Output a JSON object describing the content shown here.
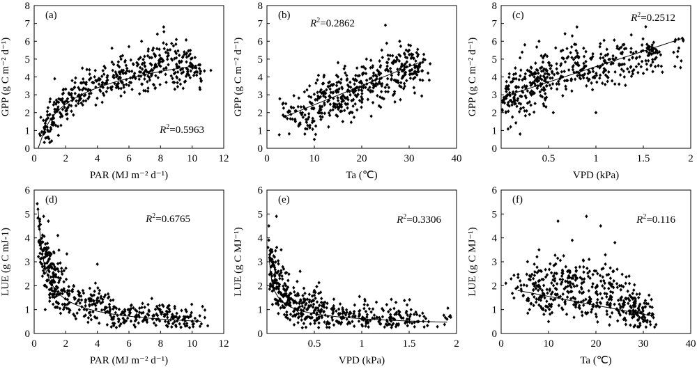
{
  "chart_data": [
    {
      "id": "a",
      "type": "scatter",
      "panel_label": "(a)",
      "xlabel": "PAR (MJ m⁻² d⁻¹)",
      "ylabel": "GPP (g C m⁻² d⁻¹)",
      "xlim": [
        0,
        12
      ],
      "ylim": [
        0,
        8
      ],
      "xticks": [
        "0",
        "2",
        "4",
        "6",
        "8",
        "10",
        "12"
      ],
      "yticks": [
        "0",
        "1",
        "2",
        "3",
        "4",
        "5",
        "6",
        "7",
        "8"
      ],
      "r2_label": "R",
      "r2_text": "=0.5963",
      "r2_position": "bottom-right",
      "fit": {
        "form": "logarithmic",
        "coef": [
          1.32,
          1.56
        ]
      },
      "n_points": 480,
      "points": [
        [
          0.6,
          0.8
        ],
        [
          0.7,
          1.4
        ],
        [
          0.8,
          0.6
        ],
        [
          1.0,
          1.9
        ],
        [
          1.2,
          1.3
        ],
        [
          1.3,
          3.9
        ],
        [
          1.5,
          2.2
        ],
        [
          1.8,
          2.6
        ],
        [
          2.0,
          2.1
        ],
        [
          2.2,
          3.1
        ],
        [
          2.5,
          2.8
        ],
        [
          2.8,
          3.4
        ],
        [
          3.0,
          3.0
        ],
        [
          3.3,
          3.7
        ],
        [
          3.5,
          4.4
        ],
        [
          4.0,
          3.8
        ],
        [
          4.2,
          3.2
        ],
        [
          4.5,
          4.5
        ],
        [
          5.0,
          4.0
        ],
        [
          5.2,
          3.4
        ],
        [
          5.5,
          5.0
        ],
        [
          5.8,
          4.2
        ],
        [
          6.0,
          5.7
        ],
        [
          6.2,
          3.3
        ],
        [
          6.5,
          4.8
        ],
        [
          6.8,
          6.0
        ],
        [
          7.0,
          4.1
        ],
        [
          7.2,
          3.2
        ],
        [
          7.5,
          5.5
        ],
        [
          7.8,
          6.4
        ],
        [
          8.0,
          4.6
        ],
        [
          8.2,
          6.8
        ],
        [
          8.5,
          5.2
        ],
        [
          8.8,
          3.7
        ],
        [
          9.0,
          6.1
        ],
        [
          9.2,
          4.8
        ],
        [
          9.5,
          5.4
        ],
        [
          9.8,
          4.1
        ],
        [
          10.0,
          4.6
        ],
        [
          10.5,
          3.3
        ]
      ]
    },
    {
      "id": "b",
      "type": "scatter",
      "panel_label": "(b)",
      "xlabel": "Ta (℃)",
      "ylabel": "GPP (g C m⁻² d⁻¹)",
      "xlim": [
        0,
        40
      ],
      "ylim": [
        0,
        8
      ],
      "xticks": [
        "0",
        "10",
        "20",
        "30",
        "40"
      ],
      "yticks": [
        "0",
        "1",
        "2",
        "3",
        "4",
        "5",
        "6",
        "7",
        "8"
      ],
      "r2_label": "R",
      "r2_text": "=0.2862",
      "r2_position": "top-left",
      "fit": {
        "form": "linear",
        "coef": [
          0.107,
          1.37
        ],
        "x_range": [
          4,
          32
        ]
      },
      "n_points": 480,
      "points": [
        [
          4,
          2.5
        ],
        [
          6,
          1.5
        ],
        [
          8,
          0.8
        ],
        [
          9,
          3.5
        ],
        [
          10,
          0.5
        ],
        [
          11,
          2.0
        ],
        [
          12,
          4.0
        ],
        [
          13,
          1.2
        ],
        [
          14,
          2.8
        ],
        [
          15,
          4.8
        ],
        [
          16,
          1.5
        ],
        [
          17,
          3.2
        ],
        [
          18,
          2.0
        ],
        [
          19,
          4.5
        ],
        [
          20,
          2.6
        ],
        [
          21,
          5.0
        ],
        [
          22,
          1.8
        ],
        [
          23,
          3.5
        ],
        [
          24,
          4.2
        ],
        [
          25,
          6.9
        ],
        [
          26,
          5.2
        ],
        [
          27,
          2.6
        ],
        [
          28,
          6.0
        ],
        [
          29,
          4.1
        ],
        [
          30,
          5.5
        ],
        [
          31,
          3.4
        ],
        [
          32,
          4.3
        ]
      ]
    },
    {
      "id": "c",
      "type": "scatter",
      "panel_label": "(c)",
      "xlabel": "VPD (kPa)",
      "ylabel": "GPP (g C m⁻² d⁻¹)",
      "xlim": [
        0,
        2
      ],
      "ylim": [
        0,
        8
      ],
      "xticks": [
        "0.5",
        "1",
        "1.5",
        "2"
      ],
      "yticks": [
        "0",
        "1",
        "2",
        "3",
        "4",
        "5",
        "6",
        "7",
        "8"
      ],
      "r2_label": "R",
      "r2_text": "=0.2512",
      "r2_position": "top-right",
      "fit": {
        "form": "linear",
        "coef": [
          1.73,
          2.85
        ],
        "x_range": [
          0.02,
          1.9
        ]
      },
      "n_points": 480,
      "points": [
        [
          0.05,
          2.0
        ],
        [
          0.08,
          3.5
        ],
        [
          0.1,
          1.2
        ],
        [
          0.15,
          4.5
        ],
        [
          0.2,
          0.8
        ],
        [
          0.22,
          3.2
        ],
        [
          0.25,
          5.8
        ],
        [
          0.3,
          2.6
        ],
        [
          0.35,
          4.0
        ],
        [
          0.4,
          6.0
        ],
        [
          0.45,
          3.4
        ],
        [
          0.5,
          4.8
        ],
        [
          0.55,
          2.0
        ],
        [
          0.6,
          4.2
        ],
        [
          0.65,
          5.5
        ],
        [
          0.7,
          3.8
        ],
        [
          0.75,
          6.3
        ],
        [
          0.8,
          6.8
        ],
        [
          0.85,
          4.4
        ],
        [
          0.9,
          3.5
        ],
        [
          0.95,
          5.0
        ],
        [
          1.0,
          2.0
        ],
        [
          1.05,
          4.6
        ],
        [
          1.1,
          5.2
        ],
        [
          1.2,
          3.6
        ],
        [
          1.25,
          5.6
        ],
        [
          1.3,
          4.0
        ],
        [
          1.4,
          4.4
        ],
        [
          1.5,
          4.2
        ],
        [
          1.55,
          5.2
        ],
        [
          1.6,
          4.3
        ],
        [
          1.9,
          4.9
        ]
      ]
    },
    {
      "id": "d",
      "type": "scatter",
      "panel_label": "(d)",
      "xlabel": "PAR (MJ m⁻² d⁻¹)",
      "ylabel": "LUE (g C mJ-1)",
      "xlim": [
        0,
        12
      ],
      "ylim": [
        0,
        6
      ],
      "xticks": [
        "0",
        "2",
        "4",
        "6",
        "8",
        "10",
        "12"
      ],
      "yticks": [
        "0",
        "1",
        "2",
        "3",
        "4",
        "5",
        "6"
      ],
      "r2_label": "R",
      "r2_text": "=0.6765",
      "r2_position": "top-right",
      "fit": {
        "form": "power",
        "coef": [
          2.2,
          -0.62
        ]
      },
      "n_points": 480,
      "points": [
        [
          0.5,
          2.9
        ],
        [
          0.6,
          4.9
        ],
        [
          0.7,
          1.0
        ],
        [
          0.8,
          3.5
        ],
        [
          0.9,
          4.7
        ],
        [
          1.0,
          1.5
        ],
        [
          1.2,
          2.5
        ],
        [
          1.5,
          4.1
        ],
        [
          1.8,
          1.8
        ],
        [
          2.0,
          1.2
        ],
        [
          2.5,
          2.0
        ],
        [
          3.0,
          1.4
        ],
        [
          3.5,
          1.2
        ],
        [
          4.0,
          2.9
        ],
        [
          4.5,
          1.1
        ],
        [
          5.0,
          1.4
        ],
        [
          5.5,
          0.8
        ],
        [
          6.0,
          1.0
        ],
        [
          6.5,
          0.7
        ],
        [
          7.0,
          1.1
        ],
        [
          7.5,
          0.6
        ],
        [
          8.0,
          0.9
        ],
        [
          8.5,
          0.5
        ],
        [
          9.0,
          0.7
        ],
        [
          9.5,
          0.4
        ],
        [
          10.0,
          0.5
        ],
        [
          10.5,
          0.3
        ]
      ]
    },
    {
      "id": "e",
      "type": "scatter",
      "panel_label": "(e)",
      "xlabel": "VPD (kPa)",
      "ylabel": "LUE (g C MJ⁻¹)",
      "xlim": [
        0,
        2
      ],
      "ylim": [
        0,
        6
      ],
      "xticks": [
        "0.5",
        "1",
        "1.5",
        "2"
      ],
      "yticks": [
        "0",
        "1",
        "2",
        "3",
        "4",
        "5",
        "6"
      ],
      "r2_label": "R",
      "r2_text": "=0.3306",
      "r2_position": "top-right",
      "fit": {
        "form": "power",
        "coef": [
          0.62,
          -0.42
        ],
        "x_range": [
          0.02,
          1.9
        ]
      },
      "n_points": 480,
      "points": [
        [
          0.02,
          4.5
        ],
        [
          0.05,
          2.0
        ],
        [
          0.08,
          3.2
        ],
        [
          0.1,
          4.9
        ],
        [
          0.12,
          1.2
        ],
        [
          0.15,
          3.5
        ],
        [
          0.2,
          2.0
        ],
        [
          0.25,
          0.8
        ],
        [
          0.3,
          1.6
        ],
        [
          0.35,
          2.6
        ],
        [
          0.4,
          0.6
        ],
        [
          0.45,
          1.4
        ],
        [
          0.5,
          1.8
        ],
        [
          0.55,
          0.7
        ],
        [
          0.6,
          1.2
        ],
        [
          0.7,
          0.9
        ],
        [
          0.8,
          1.0
        ],
        [
          0.9,
          0.5
        ],
        [
          1.0,
          0.6
        ],
        [
          1.1,
          0.9
        ],
        [
          1.2,
          0.4
        ],
        [
          1.3,
          0.6
        ],
        [
          1.4,
          0.9
        ],
        [
          1.5,
          0.6
        ],
        [
          1.6,
          0.5
        ],
        [
          1.9,
          0.6
        ]
      ]
    },
    {
      "id": "f",
      "type": "scatter",
      "panel_label": "(f)",
      "xlabel": "Ta (℃)",
      "ylabel": "LUE (g C MJ⁻¹)",
      "xlim": [
        0,
        40
      ],
      "ylim": [
        0,
        6
      ],
      "xticks": [
        "0",
        "10",
        "20",
        "30",
        "40"
      ],
      "yticks": [
        "0",
        "1",
        "2",
        "3",
        "4",
        "5",
        "6"
      ],
      "r2_label": "R",
      "r2_text": "=0.116",
      "r2_position": "top-right",
      "fit": {
        "form": "linear",
        "coef": [
          -0.0375,
          1.93
        ],
        "x_range": [
          3.5,
          31.5
        ]
      },
      "n_points": 480,
      "points": [
        [
          4,
          2.2
        ],
        [
          6,
          1.0
        ],
        [
          7,
          2.9
        ],
        [
          8,
          3.5
        ],
        [
          9,
          1.6
        ],
        [
          10,
          0.5
        ],
        [
          11,
          2.4
        ],
        [
          12,
          4.7
        ],
        [
          13,
          1.0
        ],
        [
          14,
          2.6
        ],
        [
          15,
          3.9
        ],
        [
          16,
          1.3
        ],
        [
          17,
          2.1
        ],
        [
          18,
          4.9
        ],
        [
          19,
          0.9
        ],
        [
          20,
          1.7
        ],
        [
          21,
          4.5
        ],
        [
          22,
          2.9
        ],
        [
          23,
          1.1
        ],
        [
          24,
          3.8
        ],
        [
          25,
          2.0
        ],
        [
          26,
          1.3
        ],
        [
          27,
          2.4
        ],
        [
          28,
          0.7
        ],
        [
          29,
          1.5
        ],
        [
          30,
          0.5
        ],
        [
          31,
          0.8
        ]
      ]
    }
  ]
}
